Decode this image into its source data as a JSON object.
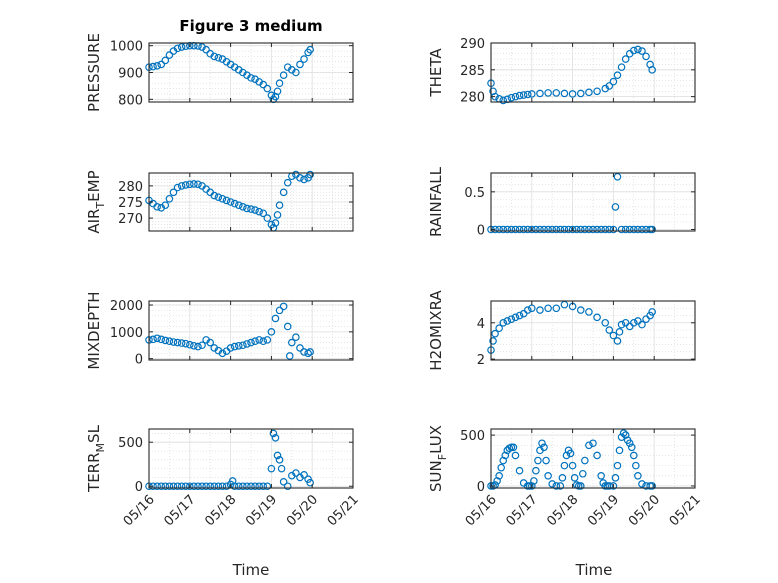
{
  "figure_title": "Figure 3 medium",
  "xlabel": "Time",
  "xticklabels": [
    "05/16",
    "05/17",
    "05/18",
    "05/19",
    "05/20",
    "05/21"
  ],
  "marker_color": "#0072BD",
  "chart_data": [
    {
      "type": "scatter",
      "ylabel": "PRESSURE",
      "xlim": [
        16,
        21
      ],
      "ylim": [
        790,
        1010
      ],
      "yticks": [
        800,
        900,
        1000
      ],
      "yticklabels": [
        "800",
        "900",
        "1000"
      ],
      "x": [
        16,
        16.1,
        16.2,
        16.3,
        16.4,
        16.5,
        16.6,
        16.7,
        16.8,
        16.9,
        17.0,
        17.1,
        17.2,
        17.3,
        17.4,
        17.5,
        17.6,
        17.7,
        17.8,
        17.9,
        18.0,
        18.1,
        18.2,
        18.3,
        18.4,
        18.5,
        18.6,
        18.7,
        18.8,
        18.9,
        19.0,
        19.05,
        19.1,
        19.15,
        19.2,
        19.3,
        19.4,
        19.5,
        19.6,
        19.7,
        19.8,
        19.9,
        19.95
      ],
      "y": [
        920,
        922,
        925,
        930,
        945,
        965,
        980,
        990,
        995,
        998,
        1000,
        1000,
        999,
        995,
        985,
        970,
        960,
        955,
        950,
        940,
        930,
        920,
        910,
        900,
        890,
        880,
        875,
        865,
        855,
        840,
        815,
        800,
        810,
        830,
        860,
        890,
        920,
        910,
        900,
        930,
        950,
        975,
        985
      ]
    },
    {
      "type": "scatter",
      "ylabel": "THETA",
      "xlim": [
        16,
        21
      ],
      "ylim": [
        279,
        290
      ],
      "yticks": [
        280,
        285,
        290
      ],
      "yticklabels": [
        "280",
        "285",
        "290"
      ],
      "x": [
        16,
        16.05,
        16.1,
        16.2,
        16.3,
        16.4,
        16.5,
        16.6,
        16.7,
        16.8,
        16.9,
        17.0,
        17.2,
        17.4,
        17.6,
        17.8,
        18.0,
        18.2,
        18.4,
        18.6,
        18.8,
        18.9,
        19.0,
        19.1,
        19.2,
        19.3,
        19.4,
        19.5,
        19.6,
        19.7,
        19.8,
        19.9,
        19.95
      ],
      "y": [
        282.5,
        281,
        280,
        279.6,
        279.3,
        279.5,
        279.8,
        280,
        280.2,
        280.3,
        280.4,
        280.5,
        280.6,
        280.7,
        280.7,
        280.6,
        280.5,
        280.6,
        280.8,
        281,
        281.5,
        282,
        282.8,
        284,
        285.5,
        287,
        288,
        288.6,
        288.8,
        288.5,
        287.5,
        286,
        285
      ]
    },
    {
      "type": "scatter",
      "ylabel": "AIR",
      "ylabel_sub": "T",
      "ylabel_rest": "EMP",
      "xlim": [
        16,
        21
      ],
      "ylim": [
        266,
        284
      ],
      "yticks": [
        270,
        275,
        280
      ],
      "yticklabels": [
        "270",
        "275",
        "280"
      ],
      "x": [
        16,
        16.1,
        16.2,
        16.3,
        16.4,
        16.5,
        16.6,
        16.7,
        16.8,
        16.9,
        17.0,
        17.1,
        17.2,
        17.3,
        17.4,
        17.5,
        17.6,
        17.7,
        17.8,
        17.9,
        18.0,
        18.1,
        18.2,
        18.3,
        18.4,
        18.5,
        18.6,
        18.7,
        18.8,
        18.9,
        19.0,
        19.05,
        19.1,
        19.15,
        19.2,
        19.3,
        19.4,
        19.5,
        19.6,
        19.7,
        19.8,
        19.9,
        19.95
      ],
      "y": [
        275.5,
        274.5,
        273.5,
        273.2,
        274,
        276,
        278,
        279.5,
        280,
        280.3,
        280.5,
        280.6,
        280.5,
        280,
        279,
        278,
        277,
        276.5,
        276,
        275.5,
        275,
        274.5,
        274,
        273.5,
        273,
        272.8,
        272.5,
        272,
        271.5,
        270,
        268,
        267,
        268.5,
        271,
        274,
        278,
        281,
        283,
        283.5,
        282.5,
        282,
        282.5,
        283.5
      ]
    },
    {
      "type": "scatter",
      "ylabel": "RAINFALL",
      "xlim": [
        16,
        21
      ],
      "ylim": [
        -0.02,
        0.75
      ],
      "yticks": [
        0,
        0.5
      ],
      "yticklabels": [
        "0",
        "0.5"
      ],
      "x": [
        16,
        16.1,
        16.2,
        16.3,
        16.4,
        16.5,
        16.6,
        16.7,
        16.8,
        16.9,
        17.0,
        17.1,
        17.2,
        17.3,
        17.4,
        17.5,
        17.6,
        17.7,
        17.8,
        17.9,
        18.0,
        18.1,
        18.2,
        18.3,
        18.4,
        18.5,
        18.6,
        18.7,
        18.8,
        18.9,
        19.0,
        19.05,
        19.1,
        19.2,
        19.3,
        19.4,
        19.5,
        19.6,
        19.7,
        19.8,
        19.9,
        19.95
      ],
      "y": [
        0,
        0,
        0,
        0,
        0,
        0,
        0,
        0,
        0,
        0,
        0,
        0,
        0,
        0,
        0,
        0,
        0,
        0,
        0,
        0,
        0,
        0,
        0,
        0,
        0,
        0,
        0,
        0,
        0,
        0,
        0,
        0.3,
        0.7,
        0,
        0,
        0,
        0,
        0,
        0,
        0,
        0,
        0
      ]
    },
    {
      "type": "scatter",
      "ylabel": "MIXDEPTH",
      "xlim": [
        16,
        21
      ],
      "ylim": [
        -50,
        2150
      ],
      "yticks": [
        0,
        1000,
        2000
      ],
      "yticklabels": [
        "0",
        "1000",
        "2000"
      ],
      "x": [
        16,
        16.1,
        16.2,
        16.3,
        16.4,
        16.5,
        16.6,
        16.7,
        16.8,
        16.9,
        17.0,
        17.1,
        17.2,
        17.3,
        17.4,
        17.5,
        17.6,
        17.7,
        17.8,
        17.9,
        18.0,
        18.1,
        18.2,
        18.3,
        18.4,
        18.5,
        18.6,
        18.7,
        18.8,
        18.9,
        19.0,
        19.1,
        19.2,
        19.3,
        19.4,
        19.45,
        19.5,
        19.6,
        19.7,
        19.8,
        19.9,
        19.95
      ],
      "y": [
        700,
        720,
        760,
        720,
        680,
        650,
        620,
        600,
        580,
        560,
        520,
        480,
        450,
        500,
        700,
        600,
        400,
        300,
        200,
        280,
        400,
        450,
        480,
        500,
        550,
        600,
        650,
        700,
        650,
        700,
        1000,
        1500,
        1800,
        1950,
        1200,
        100,
        600,
        800,
        400,
        250,
        200,
        250
      ]
    },
    {
      "type": "scatter",
      "ylabel": "H2OMIXRA",
      "xlim": [
        16,
        21
      ],
      "ylim": [
        1.95,
        5.2
      ],
      "yticks": [
        2,
        4
      ],
      "yticklabels": [
        "2",
        "4"
      ],
      "x": [
        16,
        16.05,
        16.1,
        16.2,
        16.3,
        16.4,
        16.5,
        16.6,
        16.7,
        16.8,
        16.9,
        17.0,
        17.2,
        17.4,
        17.6,
        17.8,
        18.0,
        18.2,
        18.4,
        18.6,
        18.8,
        18.9,
        19.0,
        19.1,
        19.15,
        19.2,
        19.3,
        19.4,
        19.5,
        19.6,
        19.7,
        19.8,
        19.9,
        19.95
      ],
      "y": [
        2.5,
        3,
        3.4,
        3.7,
        4,
        4.1,
        4.2,
        4.3,
        4.4,
        4.5,
        4.7,
        4.8,
        4.7,
        4.8,
        4.8,
        5,
        4.9,
        4.7,
        4.6,
        4.3,
        4,
        3.6,
        3.3,
        3,
        3.5,
        3.9,
        4,
        3.8,
        4,
        4.1,
        3.9,
        4.2,
        4.4,
        4.6
      ]
    },
    {
      "type": "scatter",
      "ylabel": "TERR",
      "ylabel_sub": "M",
      "ylabel_rest": "SL",
      "xlim": [
        16,
        21
      ],
      "ylim": [
        -20,
        650
      ],
      "yticks": [
        0,
        500
      ],
      "yticklabels": [
        "0",
        "500"
      ],
      "x": [
        16,
        16.1,
        16.2,
        16.3,
        16.4,
        16.5,
        16.6,
        16.7,
        16.8,
        16.9,
        17.0,
        17.1,
        17.2,
        17.3,
        17.4,
        17.5,
        17.6,
        17.7,
        17.8,
        17.9,
        18.0,
        18.05,
        18.1,
        18.2,
        18.3,
        18.4,
        18.5,
        18.6,
        18.7,
        18.8,
        18.9,
        19.0,
        19.05,
        19.1,
        19.15,
        19.2,
        19.25,
        19.3,
        19.4,
        19.5,
        19.6,
        19.7,
        19.8,
        19.9,
        19.95
      ],
      "y": [
        0,
        0,
        0,
        0,
        0,
        0,
        0,
        0,
        0,
        0,
        0,
        0,
        0,
        0,
        0,
        0,
        0,
        0,
        0,
        0,
        20,
        60,
        0,
        0,
        0,
        0,
        0,
        0,
        0,
        0,
        0,
        200,
        600,
        550,
        350,
        300,
        200,
        50,
        0,
        120,
        150,
        100,
        130,
        80,
        40
      ]
    },
    {
      "type": "scatter",
      "ylabel": "SUN",
      "ylabel_sub": "F",
      "ylabel_rest": "LUX",
      "xlim": [
        16,
        21
      ],
      "ylim": [
        -20,
        560
      ],
      "yticks": [
        0,
        500
      ],
      "yticklabels": [
        "0",
        "500"
      ],
      "x": [
        16,
        16.05,
        16.1,
        16.15,
        16.2,
        16.25,
        16.3,
        16.35,
        16.4,
        16.45,
        16.5,
        16.55,
        16.6,
        16.7,
        16.8,
        16.9,
        16.95,
        17.0,
        17.05,
        17.1,
        17.15,
        17.2,
        17.25,
        17.3,
        17.35,
        17.4,
        17.5,
        17.6,
        17.7,
        17.75,
        17.8,
        17.85,
        17.9,
        17.95,
        18.0,
        18.05,
        18.1,
        18.15,
        18.2,
        18.25,
        18.3,
        18.4,
        18.5,
        18.6,
        18.7,
        18.75,
        18.8,
        18.85,
        18.9,
        19.0,
        19.05,
        19.1,
        19.15,
        19.2,
        19.25,
        19.3,
        19.35,
        19.4,
        19.45,
        19.5,
        19.55,
        19.6,
        19.7,
        19.8,
        19.9,
        19.95
      ],
      "y": [
        0,
        0,
        10,
        50,
        100,
        180,
        250,
        300,
        350,
        370,
        380,
        380,
        300,
        150,
        30,
        0,
        0,
        0,
        50,
        150,
        250,
        350,
        420,
        380,
        250,
        100,
        20,
        0,
        0,
        80,
        200,
        300,
        350,
        320,
        200,
        80,
        10,
        0,
        0,
        120,
        250,
        400,
        420,
        300,
        100,
        30,
        0,
        0,
        0,
        0,
        80,
        200,
        350,
        480,
        520,
        500,
        450,
        420,
        380,
        300,
        200,
        100,
        20,
        0,
        0,
        0
      ]
    }
  ]
}
